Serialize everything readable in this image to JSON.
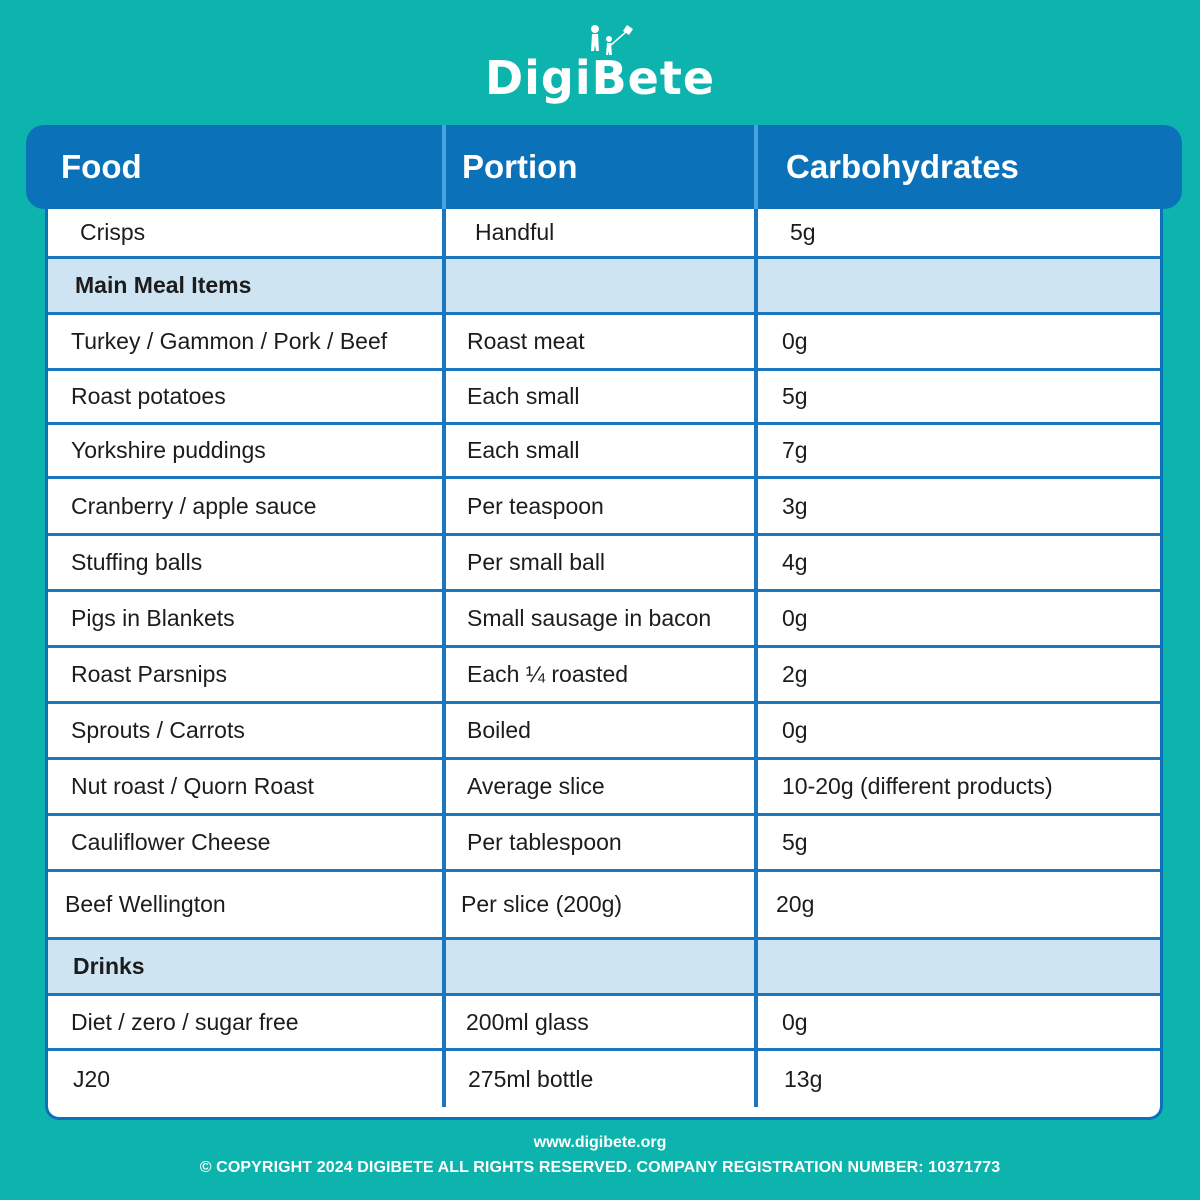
{
  "brand": {
    "name": "DigiBete",
    "icon": "family-kite-icon"
  },
  "table": {
    "headers": [
      "Food",
      "Portion",
      "Carbohydrates"
    ],
    "rows": [
      {
        "type": "item",
        "food": "Crisps",
        "portion": "Handful",
        "carbs": "5g"
      },
      {
        "type": "section",
        "food": "Main Meal Items",
        "portion": "",
        "carbs": ""
      },
      {
        "type": "item",
        "food": "Turkey / Gammon / Pork / Beef",
        "portion": "Roast meat",
        "carbs": "0g"
      },
      {
        "type": "item",
        "food": "Roast potatoes",
        "portion": "Each small",
        "carbs": "5g"
      },
      {
        "type": "item",
        "food": "Yorkshire puddings",
        "portion": "Each small",
        "carbs": "7g"
      },
      {
        "type": "item",
        "food": "Cranberry / apple sauce",
        "portion": "Per teaspoon",
        "carbs": "3g"
      },
      {
        "type": "item",
        "food": "Stuffing balls",
        "portion": "Per small ball",
        "carbs": "4g"
      },
      {
        "type": "item",
        "food": "Pigs in Blankets",
        "portion": "Small sausage in bacon",
        "carbs": "0g"
      },
      {
        "type": "item",
        "food": "Roast Parsnips",
        "portion": "Each ¼ roasted",
        "carbs": "2g"
      },
      {
        "type": "item",
        "food": "Sprouts / Carrots",
        "portion": "Boiled",
        "carbs": "0g"
      },
      {
        "type": "item",
        "food": "Nut roast / Quorn Roast",
        "portion": "Average slice",
        "carbs": "10-20g (different products)"
      },
      {
        "type": "item",
        "food": "Cauliflower Cheese",
        "portion": "Per tablespoon",
        "carbs": "5g"
      },
      {
        "type": "item",
        "food": "Beef Wellington",
        "portion": "Per slice (200g)",
        "carbs": "20g"
      },
      {
        "type": "section",
        "food": "Drinks",
        "portion": "",
        "carbs": ""
      },
      {
        "type": "item",
        "food": "Diet / zero / sugar free",
        "portion": "200ml glass",
        "carbs": "0g"
      },
      {
        "type": "item",
        "food": "J20",
        "portion": "275ml bottle",
        "carbs": "13g"
      }
    ]
  },
  "footer": {
    "url": "www.digibete.org",
    "copyright": "© COPYRIGHT 2024 DIGIBETE ALL RIGHTS RESERVED. COMPANY REGISTRATION NUMBER: 10371773"
  },
  "colors": {
    "background": "#0db3ad",
    "header": "#0b71b8",
    "section": "#cfe4f2",
    "grid": "#1a76bd"
  }
}
